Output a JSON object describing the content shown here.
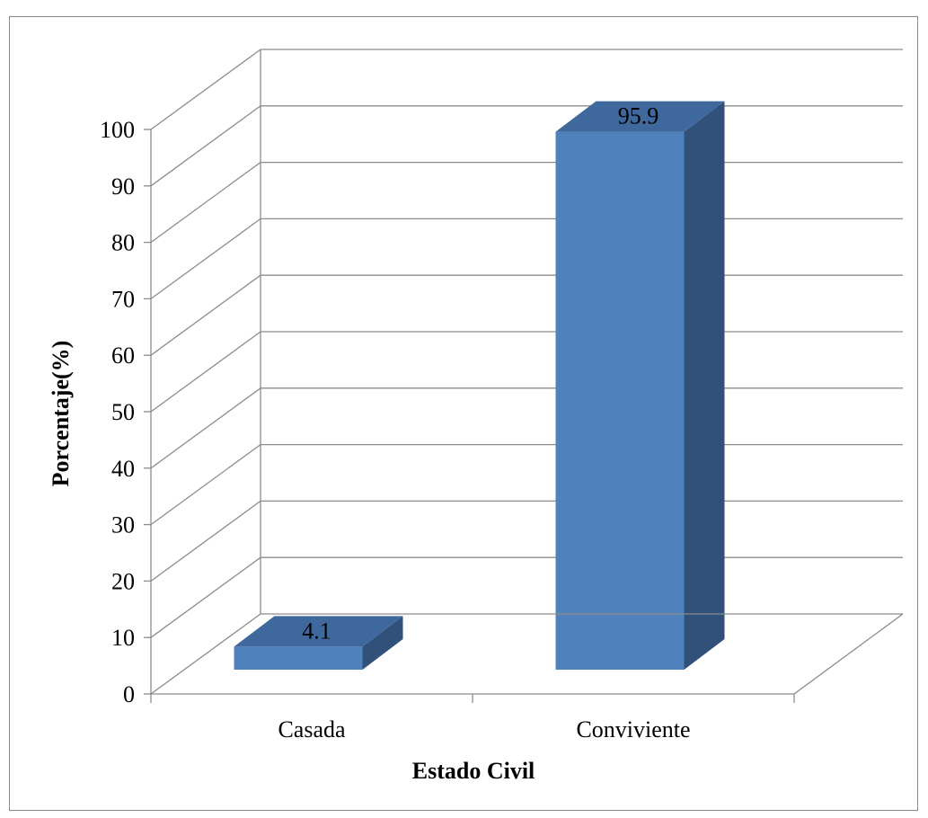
{
  "chart_data": {
    "type": "bar",
    "style": "3d-column",
    "categories": [
      "Casada",
      "Conviviente"
    ],
    "values": [
      4.1,
      95.9
    ],
    "data_labels": [
      "4.1",
      "95.9"
    ],
    "title": "",
    "xlabel": "Estado Civil",
    "ylabel": "Porcentaje(%)",
    "ylim": [
      0,
      100
    ],
    "yticks": [
      0,
      10,
      20,
      30,
      40,
      50,
      60,
      70,
      80,
      90,
      100
    ],
    "grid": true,
    "legend": "none",
    "colors": {
      "bar_front": "#4F81BD",
      "bar_top": "#3F689C",
      "bar_side": "#31517A",
      "gridline": "#8C8C8C",
      "axis": "#8C8C8C",
      "border": "#8A8A8A"
    }
  }
}
